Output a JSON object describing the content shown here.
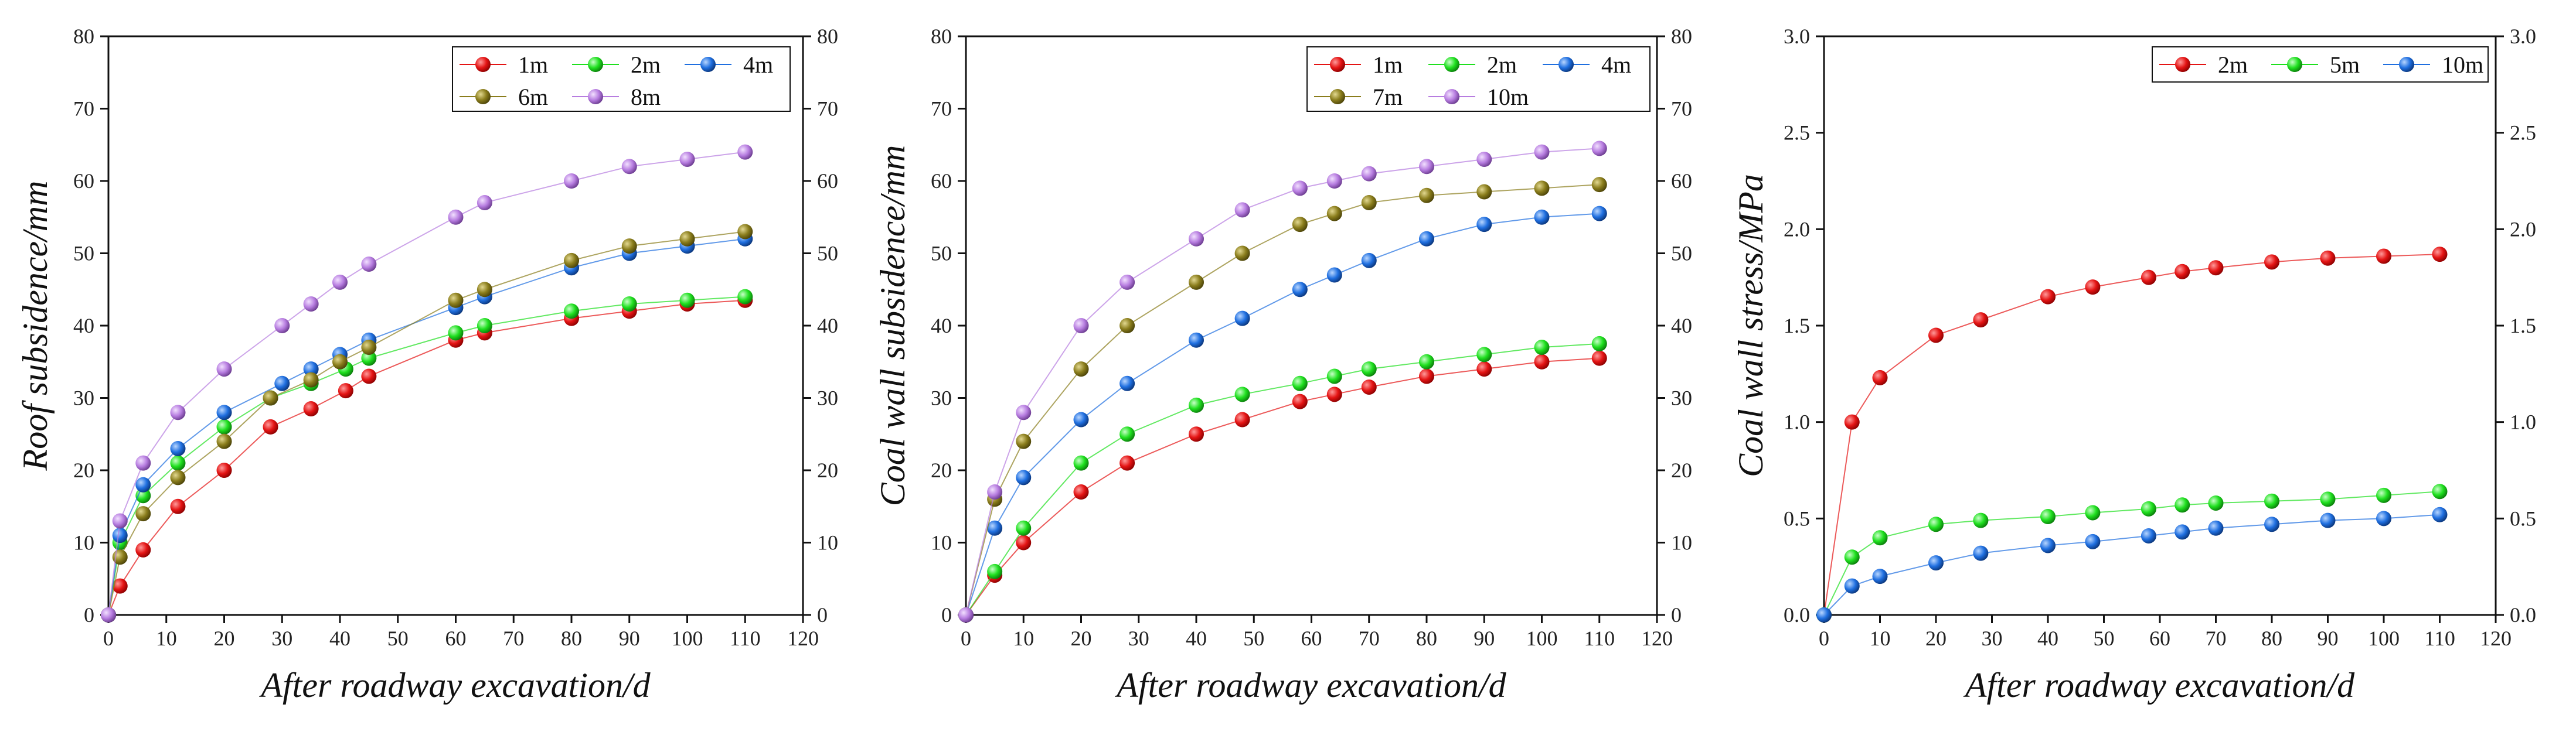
{
  "chart_data": [
    {
      "type": "line",
      "title": "",
      "xlabel": "After roadway excavation/d",
      "ylabel": "Roof subsidence/mm",
      "xlim": [
        0,
        120
      ],
      "ylim": [
        0,
        80
      ],
      "xticks": [
        "0",
        "10",
        "20",
        "30",
        "40",
        "50",
        "60",
        "70",
        "80",
        "90",
        "100",
        "110",
        "120"
      ],
      "yticks": [
        "0",
        "10",
        "20",
        "30",
        "40",
        "50",
        "60",
        "70",
        "80"
      ],
      "legend_cols": 3,
      "series": [
        {
          "name": "1m",
          "color": "#e41414",
          "x": [
            0,
            2,
            6,
            12,
            20,
            28,
            35,
            41,
            45,
            60,
            65,
            80,
            90,
            100,
            110
          ],
          "y": [
            0,
            4,
            9,
            15,
            20,
            26,
            28.5,
            31,
            33,
            38,
            39,
            41,
            42,
            43,
            43.5
          ]
        },
        {
          "name": "2m",
          "color": "#1fe01f",
          "x": [
            0,
            2,
            6,
            12,
            20,
            28,
            35,
            41,
            45,
            60,
            65,
            80,
            90,
            100,
            110
          ],
          "y": [
            0,
            10,
            16.5,
            21,
            26,
            30,
            32,
            34,
            35.5,
            39,
            40,
            42,
            43,
            43.5,
            44
          ]
        },
        {
          "name": "4m",
          "color": "#1f6fe0",
          "x": [
            0,
            2,
            6,
            12,
            20,
            30,
            35,
            40,
            45,
            60,
            65,
            80,
            90,
            100,
            110
          ],
          "y": [
            0,
            11,
            18,
            23,
            28,
            32,
            34,
            36,
            38,
            42.5,
            44,
            48,
            50,
            51,
            52
          ]
        },
        {
          "name": "6m",
          "color": "#8a7d1c",
          "x": [
            0,
            2,
            6,
            12,
            20,
            28,
            35,
            40,
            45,
            60,
            65,
            80,
            90,
            100,
            110
          ],
          "y": [
            0,
            8,
            14,
            19,
            24,
            30,
            32.5,
            35,
            37,
            43.5,
            45,
            49,
            51,
            52,
            53
          ]
        },
        {
          "name": "8m",
          "color": "#b77de0",
          "x": [
            0,
            2,
            6,
            12,
            20,
            30,
            35,
            40,
            45,
            60,
            65,
            80,
            90,
            100,
            110
          ],
          "y": [
            0,
            13,
            21,
            28,
            34,
            40,
            43,
            46,
            48.5,
            55,
            57,
            60,
            62,
            63,
            64
          ]
        }
      ]
    },
    {
      "type": "line",
      "title": "",
      "xlabel": "After roadway excavation/d",
      "ylabel": "Coal wall subsidence/mm",
      "xlim": [
        0,
        120
      ],
      "ylim": [
        0,
        80
      ],
      "xticks": [
        "0",
        "10",
        "20",
        "30",
        "40",
        "50",
        "60",
        "70",
        "80",
        "90",
        "100",
        "110",
        "120"
      ],
      "yticks": [
        "0",
        "10",
        "20",
        "30",
        "40",
        "50",
        "60",
        "70",
        "80"
      ],
      "legend_cols": 3,
      "series": [
        {
          "name": "1m",
          "color": "#e41414",
          "x": [
            0,
            5,
            10,
            20,
            28,
            40,
            48,
            58,
            64,
            70,
            80,
            90,
            100,
            110
          ],
          "y": [
            0,
            5.5,
            10,
            17,
            21,
            25,
            27,
            29.5,
            30.5,
            31.5,
            33,
            34,
            35,
            35.5
          ]
        },
        {
          "name": "2m",
          "color": "#1fe01f",
          "x": [
            0,
            5,
            10,
            20,
            28,
            40,
            48,
            58,
            64,
            70,
            80,
            90,
            100,
            110
          ],
          "y": [
            0,
            6,
            12,
            21,
            25,
            29,
            30.5,
            32,
            33,
            34,
            35,
            36,
            37,
            37.5
          ]
        },
        {
          "name": "4m",
          "color": "#1f6fe0",
          "x": [
            0,
            5,
            10,
            20,
            28,
            40,
            48,
            58,
            64,
            70,
            80,
            90,
            100,
            110
          ],
          "y": [
            0,
            12,
            19,
            27,
            32,
            38,
            41,
            45,
            47,
            49,
            52,
            54,
            55,
            55.5
          ]
        },
        {
          "name": "7m",
          "color": "#8a7d1c",
          "x": [
            0,
            5,
            10,
            20,
            28,
            40,
            48,
            58,
            64,
            70,
            80,
            90,
            100,
            110
          ],
          "y": [
            0,
            16,
            24,
            34,
            40,
            46,
            50,
            54,
            55.5,
            57,
            58,
            58.5,
            59,
            59.5
          ]
        },
        {
          "name": "10m",
          "color": "#b77de0",
          "x": [
            0,
            5,
            10,
            20,
            28,
            40,
            48,
            58,
            64,
            70,
            80,
            90,
            100,
            110
          ],
          "y": [
            0,
            17,
            28,
            40,
            46,
            52,
            56,
            59,
            60,
            61,
            62,
            63,
            64,
            64.5
          ]
        }
      ]
    },
    {
      "type": "line",
      "title": "",
      "xlabel": "After roadway excavation/d",
      "ylabel": "Coal wall stress/MPa",
      "xlim": [
        0,
        120
      ],
      "ylim": [
        0,
        3
      ],
      "xticks": [
        "0",
        "10",
        "20",
        "30",
        "40",
        "50",
        "60",
        "70",
        "80",
        "90",
        "100",
        "110",
        "120"
      ],
      "yticks": [
        "0.0",
        "0.5",
        "1.0",
        "1.5",
        "2.0",
        "2.5",
        "3.0"
      ],
      "legend_cols": 3,
      "series": [
        {
          "name": "2m",
          "color": "#e41414",
          "x": [
            0,
            5,
            10,
            20,
            28,
            40,
            48,
            58,
            64,
            70,
            80,
            90,
            100,
            110
          ],
          "y": [
            0,
            1.0,
            1.23,
            1.45,
            1.53,
            1.65,
            1.7,
            1.75,
            1.78,
            1.8,
            1.83,
            1.85,
            1.86,
            1.87
          ]
        },
        {
          "name": "5m",
          "color": "#1fe01f",
          "x": [
            0,
            5,
            10,
            20,
            28,
            40,
            48,
            58,
            64,
            70,
            80,
            90,
            100,
            110
          ],
          "y": [
            0,
            0.3,
            0.4,
            0.47,
            0.49,
            0.51,
            0.53,
            0.55,
            0.57,
            0.58,
            0.59,
            0.6,
            0.62,
            0.64
          ]
        },
        {
          "name": "10m",
          "color": "#1f6fe0",
          "x": [
            0,
            5,
            10,
            20,
            28,
            40,
            48,
            58,
            64,
            70,
            80,
            90,
            100,
            110
          ],
          "y": [
            0,
            0.15,
            0.2,
            0.27,
            0.32,
            0.36,
            0.38,
            0.41,
            0.43,
            0.45,
            0.47,
            0.49,
            0.5,
            0.52
          ]
        }
      ]
    }
  ]
}
